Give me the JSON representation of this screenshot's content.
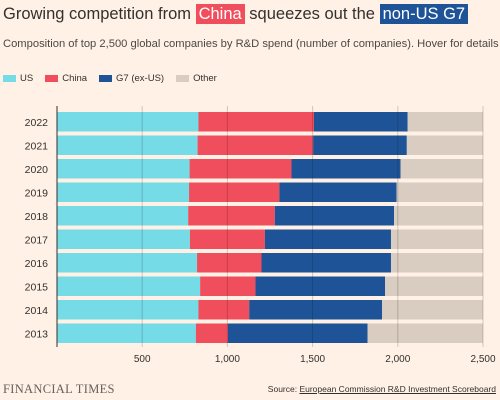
{
  "title": {
    "part1": "Growing competition from ",
    "china": "China",
    "part2": " squeezes out the ",
    "g7": "non-US G7"
  },
  "subtitle": "Composition of top 2,500 global companies by R&D spend (number of companies). Hover for details",
  "legend": [
    {
      "label": "US",
      "color": "#75dbe7"
    },
    {
      "label": "China",
      "color": "#f04e5c"
    },
    {
      "label": "G7 (ex-US)",
      "color": "#1e5497"
    },
    {
      "label": "Other",
      "color": "#d9ccc0"
    }
  ],
  "chart_data": {
    "type": "bar",
    "orientation": "horizontal",
    "stacked": true,
    "categories": [
      "2022",
      "2021",
      "2020",
      "2019",
      "2018",
      "2017",
      "2016",
      "2015",
      "2014",
      "2013"
    ],
    "series": [
      {
        "name": "US",
        "color": "#75dbe7",
        "values": [
          830,
          825,
          778,
          775,
          770,
          780,
          822,
          840,
          830,
          815
        ]
      },
      {
        "name": "China",
        "color": "#f04e5c",
        "values": [
          678,
          678,
          598,
          530,
          508,
          440,
          378,
          325,
          298,
          188
        ]
      },
      {
        "name": "G7 (ex-US)",
        "color": "#1e5497",
        "values": [
          550,
          550,
          640,
          688,
          700,
          740,
          760,
          760,
          780,
          820
        ]
      },
      {
        "name": "Other",
        "color": "#d9ccc0",
        "values": [
          442,
          447,
          484,
          507,
          522,
          540,
          540,
          575,
          592,
          677
        ]
      }
    ],
    "xlim": [
      0,
      2500
    ],
    "xticks": [
      500,
      1000,
      1500,
      2000,
      2500
    ],
    "xtick_labels": [
      "500",
      "1,000",
      "1,500",
      "2,000",
      "2,500"
    ],
    "grid": true
  },
  "footer": {
    "logo": "FINANCIAL TIMES",
    "source_prefix": "Source: ",
    "source_link": "European Commission R&D Investment Scoreboard"
  }
}
